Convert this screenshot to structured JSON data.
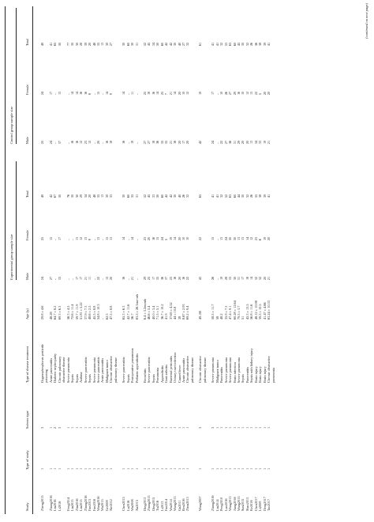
{
  "table": {
    "headers": {
      "study": "Study",
      "type_of_study": "Type of study",
      "solvent_type": "Solvent type",
      "disease": "Type of disease treatment",
      "age": "Age (y)",
      "experimental": "Experimental group sample size",
      "control": "Control group sample size",
      "male": "Male",
      "female": "Female",
      "total": "Total"
    },
    "rows": [
      {
        "study": "Zheng2015",
        "type": "1",
        "solvent": "3",
        "disease": "Organophosphorus pesticide poisoning",
        "age": "29.8 ± 4.6",
        "em": "24",
        "ef": "25",
        "et": "49",
        "cm": "25",
        "cf": "24",
        "ct": "49"
      },
      {
        "study": "Zhang2016",
        "type": "1",
        "solvent": "1",
        "disease": "Acute pancreatitis",
        "age": "48.28",
        "em": "27",
        "ef": "15",
        "et": "42",
        "cm": "24",
        "cf": "17",
        "ct": "41"
      },
      {
        "study": "Liu2016",
        "type": "1",
        "solvent": "2",
        "disease": "Diabetic nephropathy",
        "age": "64.7 ± 8.2",
        "em": "–",
        "ef": "–",
        "et": "67",
        "cm": "–",
        "cf": "–",
        "ct": "65"
      },
      {
        "study": "Li2016",
        "type": "1",
        "solvent": "3",
        "disease": "Chronic pulmonary obstructive disease",
        "age": "69.3 ± 6.3",
        "em": "33",
        "ef": "17",
        "et": "50",
        "cm": "37",
        "cf": "13",
        "ct": "50"
      },
      {
        "study": "Feng2014",
        "type": "1",
        "solvent": "1",
        "disease": "Severe pneumonia",
        "age": "56.3 ± 4.5",
        "em": "–",
        "ef": "–",
        "et": "76",
        "cm": "–",
        "cf": "–",
        "ct": "77"
      },
      {
        "study": "Liu2015",
        "type": "1",
        "solvent": "1",
        "disease": "Sepsis",
        "age": "72.6 ± 11.4",
        "em": "–",
        "ef": "–",
        "et": "30",
        "cm": "16",
        "cf": "14",
        "ct": "30"
      },
      {
        "study": "Zhu2016",
        "type": "1",
        "solvent": "1",
        "disease": "Sepsis",
        "age": "59.7 ± 11.9",
        "em": "17",
        "ef": "13",
        "et": "30",
        "cm": "16",
        "cf": "14",
        "ct": "30"
      },
      {
        "study": "Liu2015",
        "type": "1",
        "solvent": "1",
        "disease": "Asthma",
        "age": "51.81 ± 5.22",
        "em": "17",
        "ef": "12",
        "et": "29",
        "cm": "12",
        "cf": "16",
        "ct": "28"
      },
      {
        "study": "Zhang2016",
        "type": "1",
        "solvent": "1",
        "disease": "Severe pancreatitis",
        "age": "37.9 ± 7.3",
        "em": "21",
        "ef": "13",
        "et": "34",
        "cm": "23",
        "cf": "16",
        "ct": "39"
      },
      {
        "study": "Fan2015",
        "type": "1",
        "solvent": "1",
        "disease": "Sepsis",
        "age": "48.6 ± 2.5",
        "em": "11",
        "ef": "9",
        "et": "20",
        "cm": "12",
        "cf": "8",
        "ct": "20"
      },
      {
        "study": "Fan2016",
        "type": "1",
        "solvent": "1",
        "disease": "Severe pneumonia",
        "age": "45.5 ± 8.8",
        "em": "–",
        "ef": "–",
        "et": "48",
        "cm": "–",
        "cf": "–",
        "ct": "48"
      },
      {
        "study": "Wang2016",
        "type": "1",
        "solvent": "1",
        "disease": "Severe pancreatitis",
        "age": "54.8 ± 10.3",
        "em": "22",
        "ef": "13",
        "et": "35",
        "cm": "20",
        "cf": "15",
        "ct": "35"
      },
      {
        "study": "Wu2015",
        "type": "1",
        "solvent": "1",
        "disease": "Acute pancreatitis",
        "age": "–",
        "em": "–",
        "ef": "–",
        "et": "13",
        "cm": "–",
        "cf": "–",
        "ct": "13"
      },
      {
        "study": "Ge2008",
        "type": "1",
        "solvent": "1",
        "disease": "Malignant tumor",
        "age": "62.3",
        "em": "15",
        "ef": "15",
        "et": "30",
        "cm": "16",
        "cf": "14",
        "ct": "30"
      },
      {
        "study": "Xie2012",
        "type": "1",
        "solvent": "1",
        "disease": "Chronic obstructive pulmonary disease",
        "age": "47.5 ± 8.8",
        "em": "20",
        "ef": "13",
        "et": "33",
        "cm": "18",
        "cf": "9",
        "ct": "27"
      },
      {
        "gap": true,
        "study": "Chen2015",
        "type": "1",
        "solvent": "1",
        "disease": "Severe pancreatitis",
        "age": "65.3 ± 6.3",
        "em": "16",
        "ef": "14",
        "et": "30",
        "cm": "16",
        "cf": "14",
        "ct": "30"
      },
      {
        "study": "Lu2016",
        "type": "1",
        "solvent": "1",
        "disease": "Sepsis",
        "age": "42.7 ± 11.6",
        "em": "–",
        "ef": "–",
        "et": "60",
        "cm": "–",
        "cf": "–",
        "ct": "60"
      },
      {
        "study": "Wu2008",
        "type": "1",
        "solvent": "1",
        "disease": "Postoperative pneumonia",
        "age": "56.7",
        "em": "21",
        "ef": "14",
        "et": "35",
        "cm": "19",
        "cf": "11",
        "ct": "30"
      },
      {
        "study": "Xu2015",
        "type": "1",
        "solvent": "1",
        "disease": "Pediatric appendicitis",
        "age": "63.5 ± 26.3mo-nth",
        "em": "–",
        "ef": "–",
        "et": "31",
        "cm": "–",
        "cf": "–",
        "ct": "31"
      },
      {
        "gap": true,
        "study": "Ding2013",
        "type": "1",
        "solvent": "1",
        "disease": "Bronchitis",
        "age": "6.4 ± 3.2month",
        "em": "29",
        "ef": "23",
        "et": "52",
        "cm": "27",
        "cf": "25",
        "ct": "52"
      },
      {
        "study": "Zhang2015",
        "type": "1",
        "solvent": "1",
        "disease": "Severe pancreatitis",
        "age": "46.6 ± 5.4",
        "em": "25",
        "ef": "20",
        "et": "45",
        "cm": "27",
        "cf": "18",
        "ct": "45"
      },
      {
        "study": "Ding2015",
        "type": "1",
        "solvent": "1",
        "disease": "Sepsis",
        "age": "40.0 ± 3.4",
        "em": "17",
        "ef": "16",
        "et": "33",
        "cm": "18",
        "cf": "16",
        "ct": "34"
      },
      {
        "study": "Tu2016",
        "type": "1",
        "solvent": "1",
        "disease": "Pneumonia",
        "age": "71.5 ± 5.1",
        "em": "35",
        "ef": "15",
        "et": "50",
        "cm": "36",
        "cf": "14",
        "ct": "50"
      },
      {
        "study": "Li2013",
        "type": "1",
        "solvent": "1",
        "disease": "Appendicitis",
        "age": "36.7 ± 10.2",
        "em": "36",
        "ef": "24",
        "et": "60",
        "cm": "35",
        "cf": "25",
        "ct": "60"
      },
      {
        "study": "Fan2014",
        "type": "1",
        "solvent": "1",
        "disease": "Gout arthritis",
        "age": "41.9",
        "em": "37",
        "ef": "5",
        "et": "42",
        "cm": "35",
        "cf": "7",
        "ct": "42"
      },
      {
        "study": "Wu2014",
        "type": "1",
        "solvent": "1",
        "disease": "Bacterial peritonitis",
        "age": "37.65 ± 4.52",
        "em": "23",
        "ef": "19",
        "et": "42",
        "cm": "21",
        "cf": "21",
        "ct": "42"
      },
      {
        "study": "Wang2013",
        "type": "1",
        "solvent": "1",
        "disease": "Urinary tract infection",
        "age": "44 ± 10.8",
        "em": "16",
        "ef": "14",
        "et": "30",
        "cm": "16",
        "cf": "14",
        "ct": "30"
      },
      {
        "study": "Gu2011",
        "type": "1",
        "solvent": "1",
        "disease": "Caused fever",
        "age": "38",
        "em": "20",
        "ef": "20",
        "et": "40",
        "cm": "20",
        "cf": "20",
        "ct": "40"
      },
      {
        "study": "Ren2016",
        "type": "1",
        "solvent": "1",
        "disease": "Acute pancreatitis",
        "age": "8.67 ± 2.93",
        "em": "16",
        "ef": "10",
        "et": "26",
        "cm": "17",
        "cf": "10",
        "ct": "27"
      },
      {
        "study": "Zhou2013",
        "type": "1",
        "solvent": "1",
        "disease": "Chronic obstructive pulmonary disease",
        "age": "69.2 ± 9.4",
        "em": "22",
        "ef": "10",
        "et": "32",
        "cm": "20",
        "cf": "12",
        "ct": "32"
      },
      {
        "gap": true,
        "study": "Wang2007",
        "type": "1",
        "solvent": "3",
        "disease": "Chronic obstructive pulmonary disease",
        "age": "49–88",
        "em": "43",
        "ef": "22",
        "et": "65",
        "cm": "42",
        "cf": "19",
        "ct": "61"
      },
      {
        "gap": true,
        "study": "Zhang2016",
        "type": "1",
        "solvent": "3",
        "disease": "Severe pneumonia",
        "age": "58.5 ± 11.7",
        "em": "26",
        "ef": "15",
        "et": "41",
        "cm": "24",
        "cf": "17",
        "ct": "41"
      },
      {
        "study": "Liu2014",
        "type": "1",
        "solvent": "1",
        "disease": "Malignant tumor",
        "age": "58",
        "em": "–",
        "ef": "–",
        "et": "41",
        "cm": "–",
        "cf": "–",
        "ct": "41"
      },
      {
        "study": "Peng2010",
        "type": "1",
        "solvent": "1",
        "disease": "Pancreatitis",
        "age": "48.2",
        "em": "19",
        "ef": "13",
        "et": "32",
        "cm": "22",
        "cf": "10",
        "ct": "32"
      },
      {
        "study": "Luo2016",
        "type": "1",
        "solvent": "1",
        "disease": "Severe pneumonia",
        "age": "35.9 ± 7.3",
        "em": "28",
        "ef": "24",
        "et": "52",
        "cm": "27",
        "cf": "26",
        "ct": "53"
      },
      {
        "study": "Wang2013",
        "type": "1",
        "solvent": "1",
        "disease": "Severe pneumonia",
        "age": "47.4 ± 9.1",
        "em": "33",
        "ef": "30",
        "et": "63",
        "cm": "36",
        "cf": "27",
        "ct": "63"
      },
      {
        "study": "Jiang2016",
        "type": "1",
        "solvent": "1",
        "disease": "Brain infection",
        "age": "60.28 ± 12.64",
        "em": "30",
        "ef": "30",
        "et": "60",
        "cm": "31",
        "cf": "29",
        "ct": "60"
      },
      {
        "study": "Wang2015",
        "type": "1",
        "solvent": "1",
        "disease": "Severe pneumonia",
        "age": "79.5 ± 3.7",
        "em": "31",
        "ef": "13",
        "et": "44",
        "cm": "29",
        "cf": "16",
        "ct": "45"
      },
      {
        "study": "Sun2015",
        "type": "1",
        "solvent": "1",
        "disease": "Sepsis",
        "age": "51",
        "em": "17",
        "ef": "13",
        "et": "30",
        "cm": "20",
        "cf": "10",
        "ct": "30"
      },
      {
        "study": "Shao2013",
        "type": "1",
        "solvent": "1",
        "disease": "Pancreatitis",
        "age": "45.3 ± 13.5",
        "em": "18",
        "ef": "14",
        "et": "32",
        "cm": "20",
        "cf": "12",
        "ct": "32"
      },
      {
        "study": "Ke2016",
        "type": "1",
        "solvent": "1",
        "disease": "Sepsis with kidney injury",
        "age": "56.8 ± 11.6",
        "em": "14",
        "ef": "12",
        "et": "26",
        "cm": "13",
        "cf": "13",
        "ct": "26"
      },
      {
        "study": "Chen2017",
        "type": "1",
        "solvent": "1",
        "disease": "Brain injury",
        "age": "48.12 ± 10.98",
        "em": "32",
        "ef": "23",
        "et": "55",
        "cm": "34",
        "cf": "22",
        "ct": "56"
      },
      {
        "study": "Li2009",
        "type": "1",
        "solvent": "1",
        "disease": "Brain injury",
        "age": "39.5 ± 10.5",
        "em": "32",
        "ef": "6",
        "et": "38",
        "cm": "33",
        "cf": "5",
        "ct": "38"
      },
      {
        "study": "Deng2017",
        "type": "1",
        "solvent": "1",
        "disease": "Brain injury",
        "age": "41.47 ± 4.66",
        "em": "20",
        "ef": "19",
        "et": "39",
        "cm": "19",
        "cf": "20",
        "ct": "39"
      },
      {
        "study": "Tao2017",
        "type": "1",
        "solvent": "1",
        "disease": "Chronic obstructive pneumonia",
        "age": "63.24 ± 10.33",
        "em": "21",
        "ef": "20",
        "et": "41",
        "cm": "21",
        "cf": "20",
        "ct": "41"
      }
    ],
    "footer": "(continued on next page)"
  }
}
